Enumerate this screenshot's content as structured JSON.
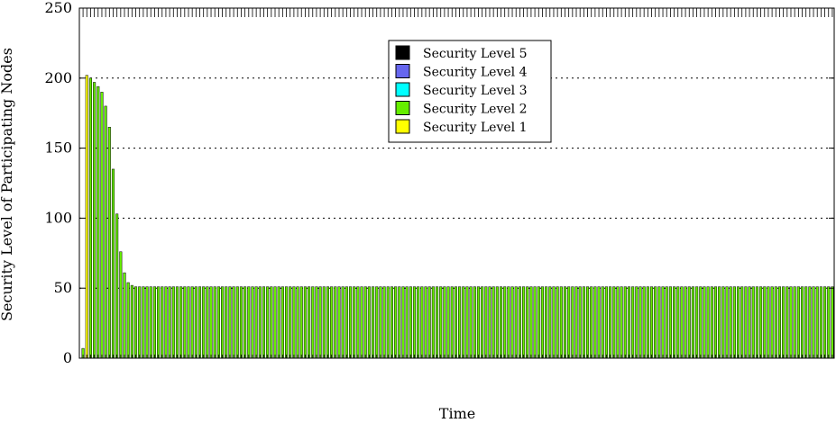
{
  "chart_data": {
    "type": "bar",
    "stacked": true,
    "title": "",
    "xlabel": "Time",
    "ylabel": "Security Level of Participating Nodes",
    "ylim": [
      0,
      250
    ],
    "yticks": [
      0,
      50,
      100,
      150,
      200,
      250
    ],
    "ytick_labels": [
      "0",
      "50",
      "100",
      "150",
      "200",
      "250"
    ],
    "grid": "horizontal dotted",
    "legend_position": "top-center",
    "num_bars": 200,
    "series": [
      {
        "name": "Security Level 5",
        "color": "#000000",
        "values": "zero"
      },
      {
        "name": "Security Level 4",
        "color": "#6666ee",
        "values": "zero"
      },
      {
        "name": "Security Level 3",
        "color": "#00ffff",
        "values": "zero"
      },
      {
        "name": "Security Level 2",
        "color": "#66ee00",
        "values": {
          "initial": [
            7,
            0,
            200,
            197,
            194,
            190,
            180,
            165,
            135,
            103,
            76,
            61,
            54,
            52,
            51,
            51
          ],
          "steady": 51
        }
      },
      {
        "name": "Security Level 1",
        "color": "#ffff00",
        "values": {
          "initial": [
            0,
            202,
            0,
            0,
            0,
            0,
            0,
            0,
            0,
            0,
            0,
            0,
            0,
            0,
            0,
            0
          ],
          "steady": 0
        }
      }
    ]
  }
}
